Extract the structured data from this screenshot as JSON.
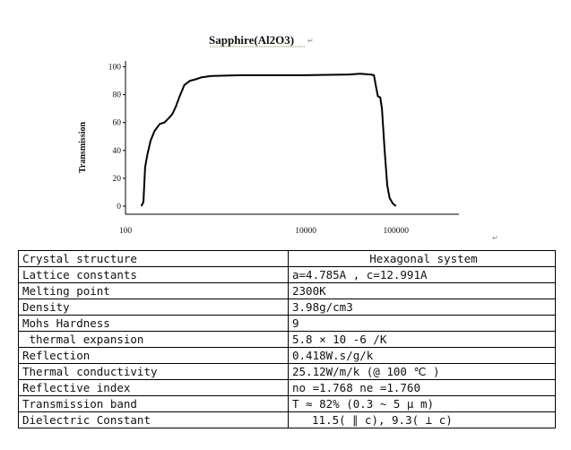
{
  "chart_data": {
    "type": "line",
    "title": "Sapphire(Al2O3)",
    "ylabel": "Transmission",
    "xlabel": "",
    "x_scale": "log",
    "y_ticks": [
      "0",
      "20",
      "40",
      "60",
      "80",
      "100"
    ],
    "x_ticks": [
      "100",
      "10000",
      "100000"
    ],
    "xlim": [
      100,
      500000
    ],
    "ylim": [
      0,
      110
    ],
    "series": [
      {
        "points": [
          [
            150,
            0
          ],
          [
            158,
            3
          ],
          [
            165,
            28
          ],
          [
            175,
            37
          ],
          [
            190,
            47
          ],
          [
            210,
            54
          ],
          [
            240,
            59
          ],
          [
            270,
            60
          ],
          [
            300,
            63
          ],
          [
            330,
            66
          ],
          [
            360,
            71
          ],
          [
            400,
            79
          ],
          [
            450,
            87
          ],
          [
            520,
            90
          ],
          [
            600,
            91
          ],
          [
            700,
            92.5
          ],
          [
            900,
            93.5
          ],
          [
            2000,
            94
          ],
          [
            10000,
            94
          ],
          [
            30000,
            94.5
          ],
          [
            40000,
            95
          ],
          [
            52000,
            94.5
          ],
          [
            57000,
            94
          ],
          [
            60000,
            86
          ],
          [
            63000,
            79
          ],
          [
            67000,
            78
          ],
          [
            70000,
            70
          ],
          [
            75000,
            40
          ],
          [
            80000,
            15
          ],
          [
            85000,
            6
          ],
          [
            92000,
            2
          ],
          [
            100000,
            0
          ]
        ]
      }
    ],
    "grid": false,
    "legend": "none"
  },
  "paragraph_marks": [
    "↵",
    "↵"
  ],
  "properties": [
    {
      "name": "Crystal structure",
      "value": "Hexagonal system",
      "align": "center"
    },
    {
      "name": "Lattice constants",
      "value": "a=4.785A , c=12.991A"
    },
    {
      "name": "Melting point",
      "value": "2300K"
    },
    {
      "name": "Density",
      "value": "3.98g/cm3"
    },
    {
      "name": "Mohs Hardness",
      "value": "9"
    },
    {
      "name": " thermal expansion",
      "value": "5.8 × 10 -6 /K"
    },
    {
      "name": "Reflection",
      "value": "0.418W.s/g/k"
    },
    {
      "name": "Thermal conductivity",
      "value": "25.12W/m/k (@ 100 ℃ )"
    },
    {
      "name": "Reflective index",
      "value": "no =1.768 ne =1.760"
    },
    {
      "name": "Transmission band",
      "value": "T ≈ 82% (0.3 ~ 5 μ m)"
    },
    {
      "name": "Dielectric Constant",
      "value": "11.5( ∥ c), 9.3( ⊥ c)",
      "align": "indent"
    }
  ]
}
